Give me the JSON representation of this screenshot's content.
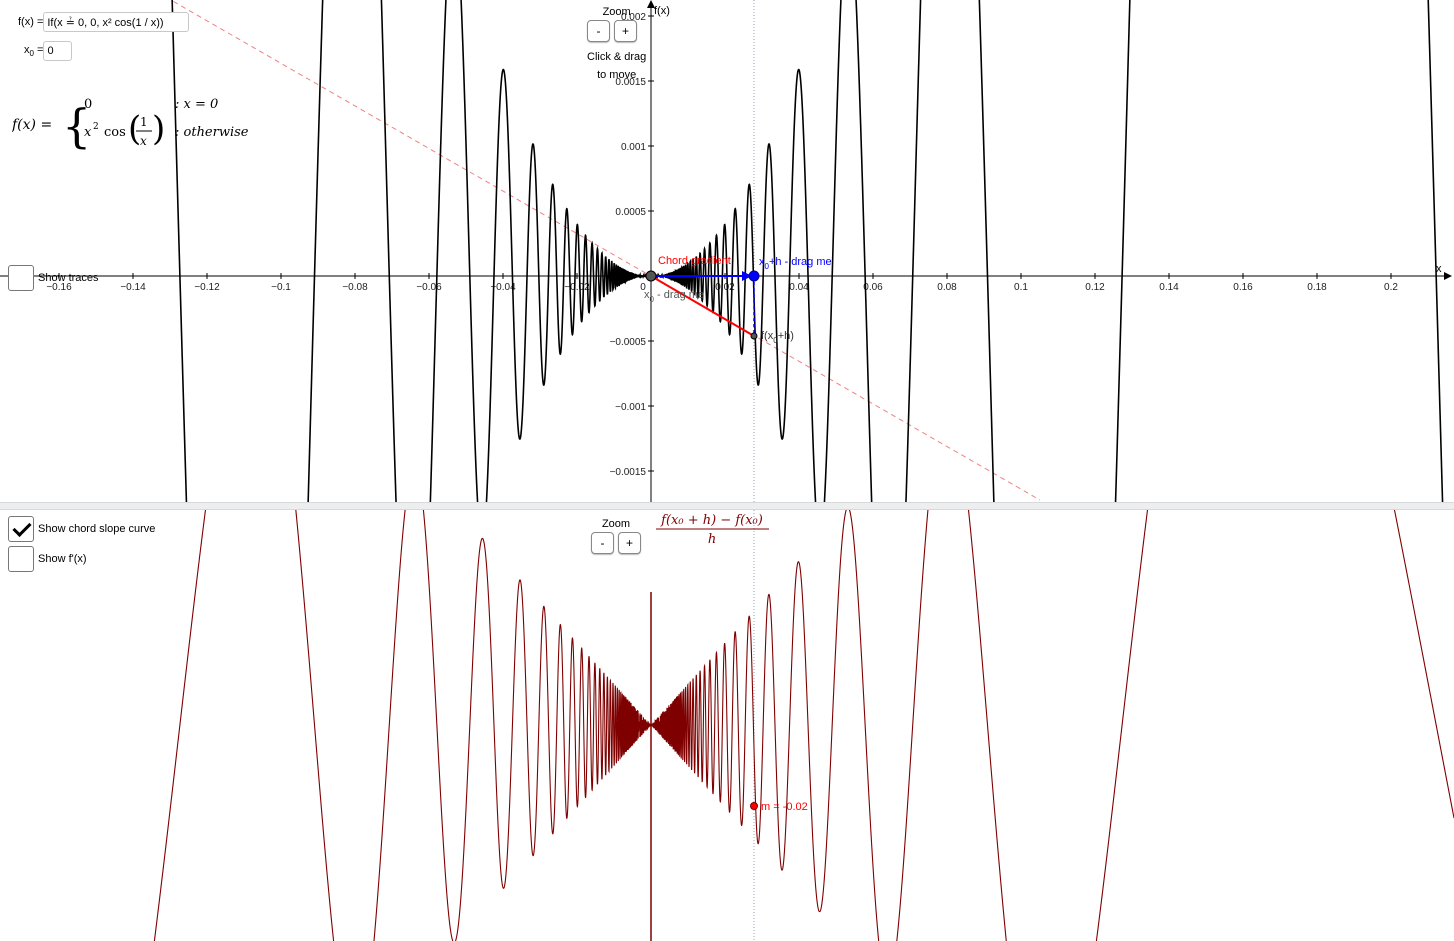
{
  "function_input": {
    "label": "f(x) = ",
    "value": "If(x ≟ 0, 0, x² cos(1 / x))"
  },
  "x0_input": {
    "label_main": "x",
    "label_sub": "0",
    "label_tail": " = ",
    "value": "0"
  },
  "formula": {
    "lhs": "f(x) =",
    "case1_value": "0",
    "case1_cond": ": x = 0",
    "case2_value_a": "x",
    "case2_value_b": "2",
    "case2_value_c": "cos",
    "case2_frac_num": "1",
    "case2_frac_den": "x",
    "case2_cond": ": otherwise"
  },
  "top_zoom": {
    "label": "Zoom",
    "minus": "-",
    "plus": "+",
    "hint_line1": "Click & drag",
    "hint_line2": "to move"
  },
  "bottom_zoom": {
    "label": "Zoom",
    "minus": "-",
    "plus": "+"
  },
  "checkboxes": {
    "show_traces": {
      "label": "Show traces",
      "checked": false
    },
    "show_chord_slope": {
      "label": "Show chord slope curve",
      "checked": true
    },
    "show_fprime": {
      "label": "Show f'(x)",
      "checked": false
    }
  },
  "top_graph": {
    "axis_x_label": "x",
    "axis_y_label": "f(x)",
    "x_ticks": [
      "−0.16",
      "−0.14",
      "−0.12",
      "−0.1",
      "−0.08",
      "−0.06",
      "−0.04",
      "−0.02",
      "0",
      "0.02",
      "0.04",
      "0.06",
      "0.08",
      "0.1",
      "0.12",
      "0.14",
      "0.16",
      "0.18",
      "0.2"
    ],
    "y_ticks": [
      "0.002",
      "0.0015",
      "0.001",
      "0.0005",
      "−0.0005",
      "−0.001",
      "−0.0015"
    ],
    "labels": {
      "chord_gradient": "Chord gradient",
      "x0h_drag_main": "x",
      "x0h_drag_sub": "0",
      "x0h_drag_tail": "+h - drag me",
      "x0_drag_main": "x",
      "x0_drag_sub": "0",
      "x0_drag_tail": " - drag me",
      "f_x0h_a": "f(x",
      "f_x0h_sub": "0",
      "f_x0h_b": "+h)"
    }
  },
  "bottom_graph": {
    "title_num": "f(x₀ + h) − f(x₀)",
    "title_den": "h",
    "m_label": "m = -0.02"
  },
  "colors": {
    "curve": "#000000",
    "chord": "#ff0000",
    "handle": "#0000ff",
    "slope_curve": "#7f0000",
    "tangent_dashed": "#f08080"
  },
  "chart_data": {
    "type": "line",
    "function": "f(x) = x^2 cos(1/x), f(0) = 0",
    "x0": 0,
    "x0_plus_h": 0.028,
    "chord_slope_m": -0.02,
    "top_xlim": [
      -0.175,
      0.217
    ],
    "top_ylim": [
      -0.0017,
      0.002
    ],
    "grid": false
  }
}
